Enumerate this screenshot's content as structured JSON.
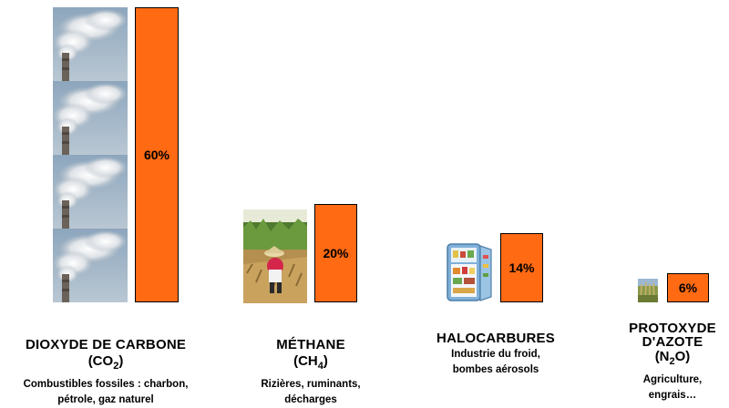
{
  "chart_data": {
    "type": "bar",
    "categories": [
      "DIOXYDE DE CARBONE",
      "MÉTHANE",
      "HALOCARBURES",
      "PROTOXYDE D'AZOTE"
    ],
    "values": [
      60,
      20,
      14,
      6
    ],
    "value_labels": [
      "60%",
      "20%",
      "14%",
      "6%"
    ],
    "unit": "%",
    "ylim": [
      0,
      60
    ],
    "bar_color": "#ff6a13",
    "title": "",
    "xlabel": "",
    "ylabel": ""
  },
  "gases": [
    {
      "name": "DIOXYDE DE CARBONE",
      "formula_prefix": "(CO",
      "formula_sub": "2",
      "formula_suffix": ")",
      "desc_line1": "Combustibles fossiles : charbon,",
      "desc_line2": "pétrole, gaz naturel",
      "icon": "factory-chimney-smoke"
    },
    {
      "name": "MÉTHANE",
      "formula_prefix": "(CH",
      "formula_sub": "4",
      "formula_suffix": ")",
      "desc_line1": "Rizières, ruminants,",
      "desc_line2": "décharges",
      "icon": "rice-field-worker"
    },
    {
      "name": "HALOCARBURES",
      "desc_line1": "Industrie du froid,",
      "desc_line2": "bombes aérosols",
      "icon": "open-refrigerator"
    },
    {
      "name_line1": "PROTOXYDE",
      "name_line2": "D'AZOTE",
      "formula_prefix": "(N",
      "formula_sub": "2",
      "formula_suffix": "O)",
      "desc_line1": "Agriculture,",
      "desc_line2": "engrais…",
      "icon": "crop-field"
    }
  ]
}
